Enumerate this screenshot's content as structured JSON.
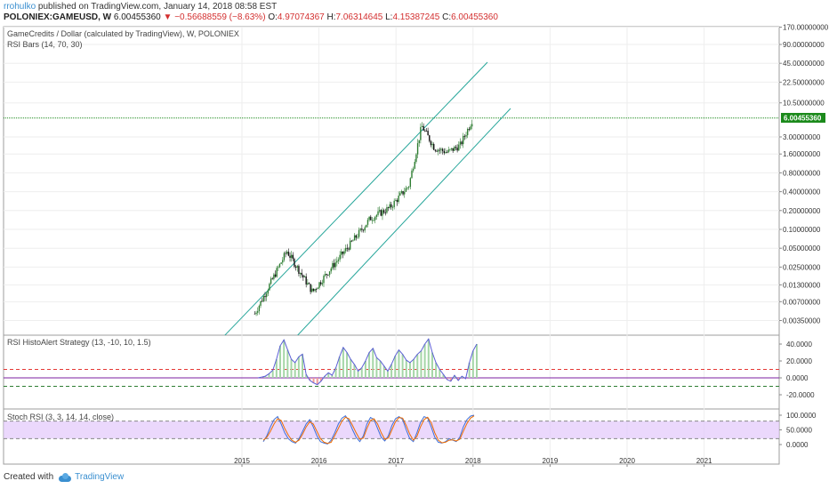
{
  "header": {
    "author": "rrohulko",
    "published_text": "published on TradingView.com, January 14, 2018 08:58 EST",
    "symbol": "POLONIEX:GAMEUSD, W",
    "last": "6.00455360",
    "change": "−0.56688559 (−8.63%)",
    "open_label": "O:",
    "open": "4.97074367",
    "high_label": "H:",
    "high": "7.06314645",
    "low_label": "L:",
    "low": "4.15387245",
    "close_label": "C:",
    "close": "6.00455360"
  },
  "main_pane": {
    "title": "GameCredits / Dollar (calculated by TradingView), W, POLONIEX",
    "indicator": "RSI Bars (14, 70, 30)"
  },
  "rsi_pane": {
    "title": "RSI HistoAlert Strategy (13, -10, 10, 1.5)"
  },
  "stoch_pane": {
    "title": "Stoch RSI (3, 3, 14, 14, close)"
  },
  "footer": {
    "created_with": "Created with",
    "brand": "TradingView"
  },
  "colors": {
    "bull": "#2e7d32",
    "bear": "#111111",
    "channel": "#26a69a",
    "last_price": "#1b8a1b",
    "hist_up": "#a5d6a7",
    "rsi_line": "#5b5ed6",
    "stoch_k": "#3f6fd8",
    "stoch_d": "#ef6c00",
    "stoch_band": "#e2c8fb",
    "level": "#e53935"
  },
  "chart_data": [
    {
      "type": "candlestick",
      "title": "GameCredits / Dollar (calculated by TradingView), W, POLONIEX",
      "scale": "log",
      "x_ticks": [
        "2015",
        "2016",
        "2017",
        "2018",
        "2019",
        "2020",
        "2021"
      ],
      "y_ticks": [
        "170.00000000",
        "90.00000000",
        "45.00000000",
        "22.50000000",
        "10.50000000",
        "3.00000000",
        "1.60000000",
        "0.80000000",
        "0.40000000",
        "0.20000000",
        "0.10000000",
        "0.05000000",
        "0.02500000",
        "0.01300000",
        "0.00700000",
        "0.00350000"
      ],
      "last_price_label": "6.00455360",
      "key_points": [
        {
          "date": "2015-03",
          "price": 0.0045
        },
        {
          "date": "2015-08",
          "price": 0.045
        },
        {
          "date": "2015-12",
          "price": 0.01
        },
        {
          "date": "2016-03",
          "price": 0.025
        },
        {
          "date": "2016-06",
          "price": 0.06
        },
        {
          "date": "2016-09",
          "price": 0.15
        },
        {
          "date": "2016-12",
          "price": 0.22
        },
        {
          "date": "2017-03",
          "price": 0.5
        },
        {
          "date": "2017-05",
          "price": 4.5
        },
        {
          "date": "2017-07",
          "price": 2.0
        },
        {
          "date": "2017-09",
          "price": 1.7
        },
        {
          "date": "2017-11",
          "price": 2.2
        },
        {
          "date": "2018-01",
          "price": 6.0
        }
      ],
      "channel": "ascending"
    },
    {
      "type": "histogram",
      "title": "RSI HistoAlert Strategy (13, -10, 10, 1.5)",
      "y_ticks": [
        "40.0000",
        "20.0000",
        "0.0000",
        "-20.0000"
      ],
      "levels": [
        10,
        -10
      ],
      "values": [
        0,
        1,
        2,
        5,
        9,
        22,
        38,
        45,
        33,
        22,
        18,
        25,
        28,
        4,
        -3,
        -6,
        -8,
        -4,
        2,
        6,
        3,
        12,
        25,
        36,
        30,
        22,
        16,
        8,
        12,
        20,
        30,
        35,
        24,
        20,
        14,
        8,
        16,
        26,
        33,
        28,
        21,
        18,
        22,
        28,
        32,
        40,
        46,
        30,
        18,
        10,
        4,
        -2,
        -4,
        3,
        -3,
        2,
        -1,
        18,
        32,
        40
      ]
    },
    {
      "type": "line",
      "title": "Stoch RSI (3, 3, 14, 14, close)",
      "y_ticks": [
        "100.0000",
        "50.0000",
        "0.0000"
      ],
      "bands": [
        80,
        20
      ],
      "series": [
        {
          "values": [
            10,
            30,
            60,
            85,
            95,
            70,
            40,
            20,
            10,
            5,
            20,
            45,
            70,
            85,
            60,
            30,
            10,
            5,
            2,
            15,
            40,
            70,
            90,
            98,
            80,
            50,
            25,
            10,
            30,
            70,
            92,
            85,
            55,
            25,
            12,
            30,
            65,
            88,
            95,
            85,
            50,
            20,
            10,
            40,
            75,
            95,
            90,
            60,
            25,
            8,
            5,
            10,
            20,
            15,
            10,
            25,
            60,
            85,
            97,
            100
          ]
        },
        {
          "values": [
            15,
            25,
            45,
            70,
            88,
            82,
            55,
            32,
            15,
            8,
            15,
            35,
            60,
            78,
            70,
            45,
            20,
            8,
            4,
            8,
            30,
            55,
            80,
            93,
            88,
            65,
            40,
            18,
            22,
            55,
            82,
            88,
            70,
            40,
            18,
            22,
            50,
            78,
            92,
            90,
            65,
            35,
            15,
            28,
            60,
            85,
            93,
            75,
            40,
            15,
            6,
            8,
            15,
            16,
            12,
            18,
            45,
            72,
            90,
            98
          ]
        }
      ]
    }
  ]
}
